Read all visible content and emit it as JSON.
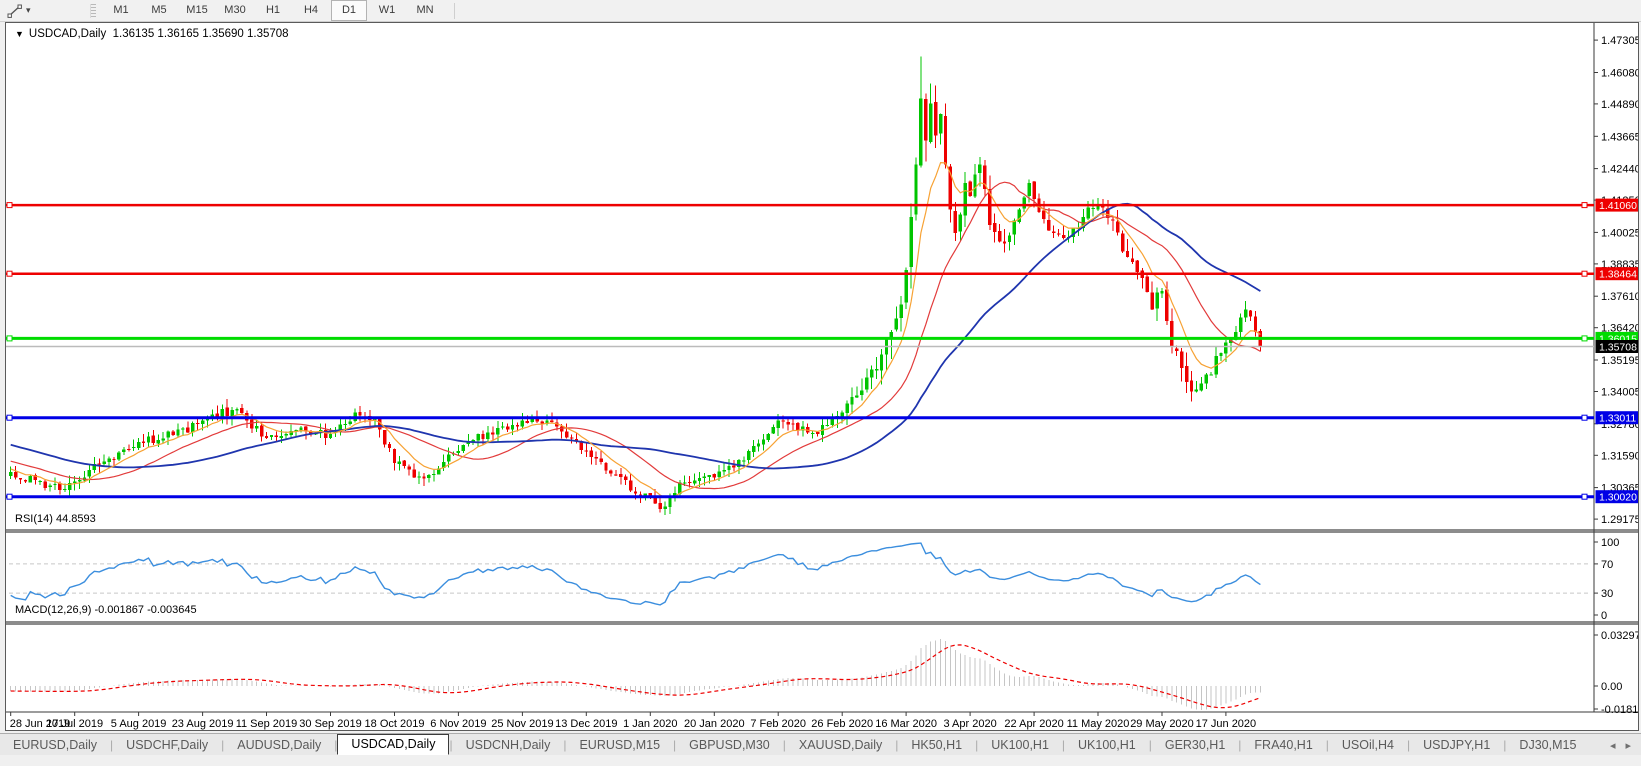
{
  "toolbar": {
    "tool_icon": "trendline-tool",
    "dropdown_caret": "▾",
    "timeframes": [
      {
        "label": "M1",
        "active": false
      },
      {
        "label": "M5",
        "active": false
      },
      {
        "label": "M15",
        "active": false
      },
      {
        "label": "M30",
        "active": false
      },
      {
        "label": "H1",
        "active": false
      },
      {
        "label": "H4",
        "active": false
      },
      {
        "label": "D1",
        "active": true
      },
      {
        "label": "W1",
        "active": false
      },
      {
        "label": "MN",
        "active": false
      }
    ]
  },
  "chart_title": {
    "dropdown": "▼",
    "symbol": "USDCAD,Daily",
    "open": "1.36135",
    "high": "1.36165",
    "low": "1.35690",
    "close": "1.35708"
  },
  "chart_data": {
    "type": "candlestick",
    "symbol": "USDCAD",
    "timeframe": "Daily",
    "ohlc": {
      "open": "1.36135",
      "high": "1.36165",
      "low": "1.35690",
      "close": "1.35708"
    },
    "price_axis_range": {
      "top": 1.4765,
      "bottom": 1.2895
    },
    "y_axis_ticks": [
      "1.47305",
      "1.46080",
      "1.44890",
      "1.43665",
      "1.42440",
      "1.41250",
      "1.40025",
      "1.38835",
      "1.37610",
      "1.36420",
      "1.35195",
      "1.34005",
      "1.32780",
      "1.31590",
      "1.30365",
      "1.29175"
    ],
    "x_axis_dates": [
      "28 Jun 2019",
      "17 Jul 2019",
      "5 Aug 2019",
      "23 Aug 2019",
      "11 Sep 2019",
      "30 Sep 2019",
      "18 Oct 2019",
      "6 Nov 2019",
      "25 Nov 2019",
      "13 Dec 2019",
      "1 Jan 2020",
      "20 Jan 2020",
      "7 Feb 2020",
      "26 Feb 2020",
      "16 Mar 2020",
      "3 Apr 2020",
      "22 Apr 2020",
      "11 May 2020",
      "29 May 2020",
      "17 Jun 2020"
    ],
    "candle_colors": {
      "up": "#00C400",
      "down": "#EE0000"
    },
    "horizontal_lines": [
      {
        "label": "1.41060",
        "value": 1.4106,
        "color": "#EE0000",
        "width": 2.5
      },
      {
        "label": "1.38464",
        "value": 1.38464,
        "color": "#EE0000",
        "width": 2.5
      },
      {
        "label": "1.36015",
        "value": 1.36015,
        "color": "#00DC00",
        "width": 3
      },
      {
        "label": "1.33011",
        "value": 1.33011,
        "color": "#0000E6",
        "width": 3
      },
      {
        "label": "1.30020",
        "value": 1.3002,
        "color": "#0000E6",
        "width": 3
      }
    ],
    "current_price_line": {
      "label": "1.35708",
      "value": 1.35708,
      "line_color": "#bbbbbb",
      "label_bg": "#000000"
    },
    "moving_averages": [
      {
        "name": "mid-ma",
        "method": "sma",
        "period": 20,
        "color": "#E23B3B",
        "width": 1.2
      },
      {
        "name": "slow-ma",
        "method": "sma",
        "period": 45,
        "color": "#1F35AE",
        "width": 1.8
      },
      {
        "name": "fast-ma",
        "method": "ema",
        "period": 8,
        "color": "#F7A234",
        "width": 1.2
      }
    ],
    "close_path_anchors": [
      [
        0,
        1.3095,
        1
      ],
      [
        5,
        1.3065,
        1
      ],
      [
        10,
        1.3028,
        1
      ],
      [
        13,
        1.306,
        1
      ],
      [
        19,
        1.3135,
        1
      ],
      [
        26,
        1.321,
        1
      ],
      [
        33,
        1.3235,
        1
      ],
      [
        39,
        1.329,
        1
      ],
      [
        45,
        1.333,
        1.2
      ],
      [
        48,
        1.329,
        1
      ],
      [
        52,
        1.3225,
        1
      ],
      [
        58,
        1.3255,
        1
      ],
      [
        65,
        1.324,
        1
      ],
      [
        70,
        1.332,
        1
      ],
      [
        74,
        1.33,
        1
      ],
      [
        78,
        1.313,
        1
      ],
      [
        84,
        1.307,
        1
      ],
      [
        91,
        1.3175,
        1
      ],
      [
        97,
        1.3245,
        1
      ],
      [
        104,
        1.329,
        1
      ],
      [
        110,
        1.3285,
        1
      ],
      [
        117,
        1.3175,
        1
      ],
      [
        123,
        1.3085,
        1
      ],
      [
        128,
        1.3005,
        1
      ],
      [
        133,
        1.2965,
        1
      ],
      [
        136,
        1.3055,
        1
      ],
      [
        143,
        1.3075,
        1
      ],
      [
        149,
        1.314,
        1
      ],
      [
        156,
        1.329,
        1
      ],
      [
        160,
        1.3255,
        1
      ],
      [
        164,
        1.324,
        1
      ],
      [
        169,
        1.332,
        1.5
      ],
      [
        173,
        1.3405,
        1.8
      ],
      [
        176,
        1.3485,
        2
      ],
      [
        179,
        1.3625,
        2.5
      ],
      [
        181,
        1.373,
        2.5
      ],
      [
        182,
        1.386,
        3
      ],
      [
        183,
        1.406,
        3
      ],
      [
        184,
        1.426,
        3
      ],
      [
        185,
        1.451,
        3
      ],
      [
        186,
        1.435,
        3
      ],
      [
        187,
        1.449,
        3
      ],
      [
        188,
        1.437,
        3
      ],
      [
        189,
        1.445,
        2.5
      ],
      [
        190,
        1.426,
        2.5
      ],
      [
        191,
        1.409,
        2.5
      ],
      [
        192,
        1.4,
        2.5
      ],
      [
        193,
        1.407,
        2
      ],
      [
        194,
        1.419,
        2
      ],
      [
        195,
        1.414,
        2
      ],
      [
        197,
        1.426,
        2
      ],
      [
        199,
        1.403,
        2
      ],
      [
        202,
        1.396,
        1.8
      ],
      [
        205,
        1.409,
        1.5
      ],
      [
        207,
        1.419,
        1.5
      ],
      [
        209,
        1.408,
        1.5
      ],
      [
        212,
        1.4,
        1.5
      ],
      [
        215,
        1.3985,
        1.2
      ],
      [
        218,
        1.406,
        1.2
      ],
      [
        221,
        1.411,
        1.2
      ],
      [
        224,
        1.405,
        1.5
      ],
      [
        226,
        1.393,
        1.8
      ],
      [
        228,
        1.389,
        1.5
      ],
      [
        230,
        1.383,
        1.8
      ],
      [
        232,
        1.371,
        2
      ],
      [
        234,
        1.378,
        1.8
      ],
      [
        236,
        1.357,
        2
      ],
      [
        238,
        1.349,
        1.8
      ],
      [
        240,
        1.34,
        1.8
      ],
      [
        242,
        1.343,
        1.3
      ],
      [
        244,
        1.3465,
        1.2
      ],
      [
        245,
        1.3535,
        1.2
      ],
      [
        247,
        1.3585,
        1.2
      ],
      [
        249,
        1.3625,
        1.2
      ],
      [
        251,
        1.371,
        1.2
      ],
      [
        252,
        1.3685,
        1
      ],
      [
        253,
        1.3625,
        1
      ],
      [
        254,
        1.35708,
        1
      ]
    ],
    "wick_overrides": [
      {
        "i": 10,
        "low": 1.3016
      },
      {
        "i": 133,
        "low": 1.2951
      },
      {
        "i": 185,
        "high": 1.4668
      },
      {
        "i": 240,
        "low": 1.3362
      }
    ],
    "indicators": {
      "rsi": {
        "label": "RSI(14) 44.8593",
        "period": 14,
        "line_color": "#3B8EDE",
        "levels": [
          {
            "label": "100",
            "value": 100,
            "dashed": false
          },
          {
            "label": "70",
            "value": 70,
            "dashed": true
          },
          {
            "label": "30",
            "value": 30,
            "dashed": true
          },
          {
            "label": "0",
            "value": 0,
            "dashed": false
          }
        ]
      },
      "macd": {
        "label": "MACD(12,26,9) -0.001867 -0.003645",
        "fast": 12,
        "slow": 26,
        "signal": 9,
        "histogram_color": "#c6c6c6",
        "signal_color": "#EE0000",
        "scale": [
          {
            "label": "0.032972",
            "value": 0.032972
          },
          {
            "label": "0.00",
            "value": 0
          },
          {
            "label": "-0.018154",
            "value": -0.018154
          }
        ]
      }
    }
  },
  "tabbar": {
    "tabs": [
      {
        "label": "EURUSD,Daily",
        "active": false
      },
      {
        "label": "USDCHF,Daily",
        "active": false
      },
      {
        "label": "AUDUSD,Daily",
        "active": false
      },
      {
        "label": "USDCAD,Daily",
        "active": true
      },
      {
        "label": "USDCNH,Daily",
        "active": false
      },
      {
        "label": "EURUSD,M15",
        "active": false
      },
      {
        "label": "GBPUSD,M30",
        "active": false
      },
      {
        "label": "XAUUSD,Daily",
        "active": false
      },
      {
        "label": "HK50,H1",
        "active": false
      },
      {
        "label": "UK100,H1",
        "active": false
      },
      {
        "label": "UK100,H1",
        "active": false
      },
      {
        "label": "GER30,H1",
        "active": false
      },
      {
        "label": "FRA40,H1",
        "active": false
      },
      {
        "label": "USOil,H4",
        "active": false
      },
      {
        "label": "USDJPY,H1",
        "active": false
      },
      {
        "label": "DJ30,M15",
        "active": false
      }
    ],
    "scroll_left": "◂",
    "scroll_right": "▸"
  }
}
